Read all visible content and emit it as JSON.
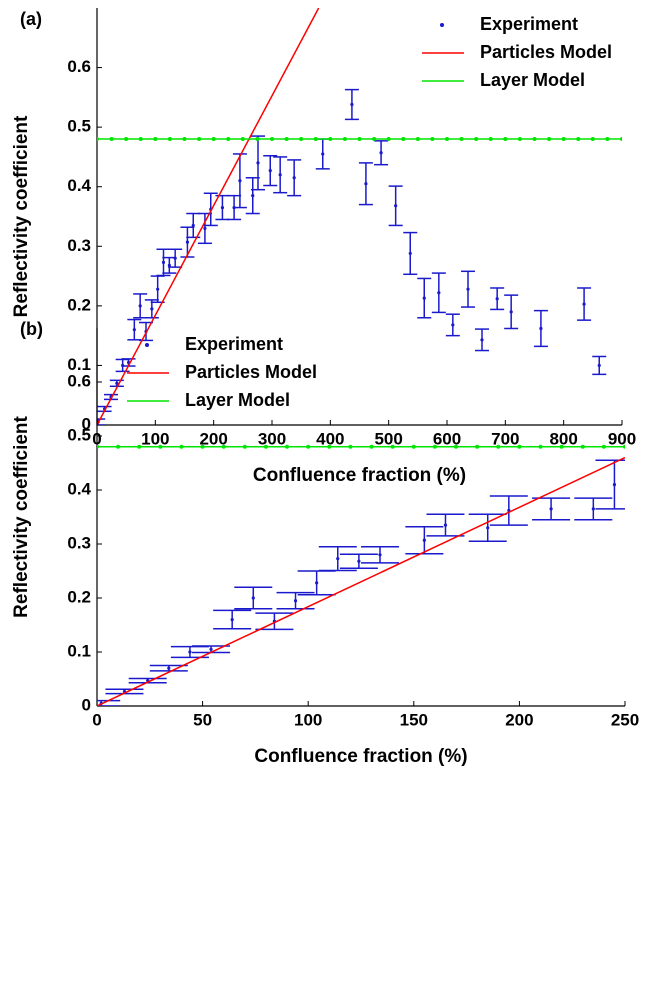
{
  "chart_data": [
    {
      "type": "mixed",
      "annotation": "(a)",
      "x_label": "Confluence fraction (%)",
      "y_label": "Reflectivity coefficient",
      "xlim": [
        0,
        900
      ],
      "ylim": [
        0,
        0.7
      ],
      "xticks": [
        0,
        100,
        200,
        300,
        400,
        500,
        600,
        700,
        800,
        900
      ],
      "yticks": [
        0,
        0.1,
        0.2,
        0.3,
        0.4,
        0.5,
        0.6
      ],
      "legend": "upper right",
      "series": [
        {
          "name": "Experiment",
          "style": "errorbar",
          "color": "#1a1acc",
          "x": [
            2,
            13,
            24,
            34,
            44,
            54,
            64,
            74,
            84,
            94,
            104,
            114,
            124,
            134,
            155,
            165,
            185,
            195,
            215,
            235,
            245,
            267,
            276,
            297,
            314,
            338,
            387,
            437,
            461,
            487,
            512,
            537,
            561,
            586,
            610,
            636,
            660,
            686,
            710,
            761,
            835,
            861
          ],
          "values": [
            0.005,
            0.027,
            0.047,
            0.07,
            0.1,
            0.105,
            0.16,
            0.2,
            0.157,
            0.195,
            0.228,
            0.273,
            0.268,
            0.28,
            0.307,
            0.335,
            0.33,
            0.362,
            0.365,
            0.365,
            0.41,
            0.385,
            0.44,
            0.427,
            0.42,
            0.415,
            0.455,
            0.538,
            0.405,
            0.457,
            0.368,
            0.288,
            0.213,
            0.222,
            0.168,
            0.228,
            0.143,
            0.212,
            0.19,
            0.162,
            0.203,
            0.1
          ],
          "errors": [
            0.005,
            0.004,
            0.004,
            0.005,
            0.01,
            0.006,
            0.017,
            0.02,
            0.015,
            0.015,
            0.022,
            0.022,
            0.013,
            0.015,
            0.025,
            0.02,
            0.025,
            0.027,
            0.02,
            0.02,
            0.045,
            0.03,
            0.045,
            0.025,
            0.03,
            0.03,
            0.025,
            0.025,
            0.035,
            0.02,
            0.033,
            0.035,
            0.033,
            0.033,
            0.018,
            0.03,
            0.018,
            0.018,
            0.028,
            0.03,
            0.027,
            0.015
          ]
        },
        {
          "name": "Particles Model",
          "style": "line",
          "color": "#ff0000",
          "x": [
            0,
            380
          ],
          "values": [
            0,
            0.7
          ]
        },
        {
          "name": "Layer Model",
          "style": "line-markers",
          "color": "#00e600",
          "x": [
            0,
            25,
            50,
            75,
            100,
            125,
            150,
            175,
            200,
            225,
            250,
            275,
            300,
            325,
            350,
            375,
            400,
            425,
            450,
            475,
            500,
            525,
            550,
            575,
            600,
            625,
            650,
            675,
            700,
            725,
            750,
            775,
            800,
            825,
            850,
            875,
            900
          ],
          "values": [
            0.48,
            0.48,
            0.48,
            0.48,
            0.48,
            0.48,
            0.48,
            0.48,
            0.48,
            0.48,
            0.48,
            0.48,
            0.48,
            0.48,
            0.48,
            0.48,
            0.48,
            0.48,
            0.48,
            0.48,
            0.48,
            0.48,
            0.48,
            0.48,
            0.48,
            0.48,
            0.48,
            0.48,
            0.48,
            0.48,
            0.48,
            0.48,
            0.48,
            0.48,
            0.48,
            0.48,
            0.48
          ]
        }
      ]
    },
    {
      "type": "mixed",
      "annotation": "(b)",
      "x_label": "Confluence fraction (%)",
      "y_label": "Reflectivity coefficient",
      "xlim": [
        0,
        250
      ],
      "ylim": [
        0,
        0.7
      ],
      "xticks": [
        0,
        50,
        100,
        150,
        200,
        250
      ],
      "yticks": [
        0,
        0.1,
        0.2,
        0.3,
        0.4,
        0.5,
        0.6
      ],
      "legend": "upper left",
      "series": [
        {
          "name": "Experiment",
          "style": "errorbar",
          "color": "#1a1acc",
          "x": [
            2,
            13,
            24,
            34,
            44,
            54,
            64,
            74,
            84,
            94,
            104,
            114,
            124,
            134,
            155,
            165,
            185,
            195,
            215,
            235,
            245
          ],
          "values": [
            0.005,
            0.027,
            0.047,
            0.07,
            0.1,
            0.105,
            0.16,
            0.2,
            0.157,
            0.195,
            0.228,
            0.273,
            0.268,
            0.28,
            0.307,
            0.335,
            0.33,
            0.362,
            0.365,
            0.365,
            0.41
          ],
          "errors": [
            0.005,
            0.004,
            0.004,
            0.005,
            0.01,
            0.006,
            0.017,
            0.02,
            0.015,
            0.015,
            0.022,
            0.022,
            0.013,
            0.015,
            0.025,
            0.02,
            0.025,
            0.027,
            0.02,
            0.02,
            0.045
          ]
        },
        {
          "name": "Particles Model",
          "style": "line",
          "color": "#ff0000",
          "x": [
            0,
            250
          ],
          "values": [
            0,
            0.46
          ]
        },
        {
          "name": "Layer Model",
          "style": "line-markers",
          "color": "#00e600",
          "x": [
            0,
            10,
            20,
            30,
            40,
            50,
            60,
            70,
            80,
            90,
            100,
            110,
            120,
            130,
            140,
            150,
            160,
            170,
            180,
            190,
            200,
            210,
            220,
            230,
            240,
            250
          ],
          "values": [
            0.48,
            0.48,
            0.48,
            0.48,
            0.48,
            0.48,
            0.48,
            0.48,
            0.48,
            0.48,
            0.48,
            0.48,
            0.48,
            0.48,
            0.48,
            0.48,
            0.48,
            0.48,
            0.48,
            0.48,
            0.48,
            0.48,
            0.48,
            0.48,
            0.48,
            0.48
          ]
        }
      ]
    }
  ]
}
